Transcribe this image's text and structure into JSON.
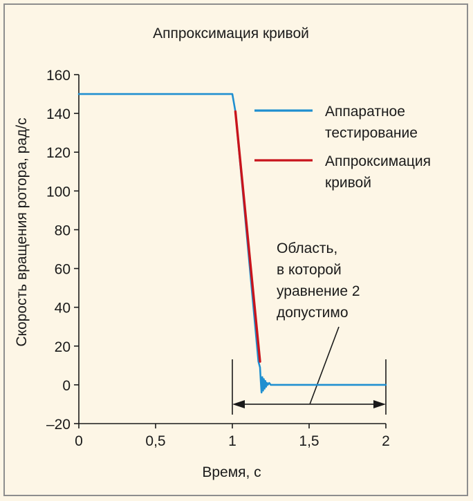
{
  "chart_data": {
    "type": "line",
    "title": "Аппроксимация кривой",
    "xlabel": "Время, с",
    "ylabel": "Скорость вращения ротора, рад/с",
    "xlim": [
      0,
      2
    ],
    "ylim": [
      -20,
      160
    ],
    "x_ticks": [
      "0",
      "0,5",
      "1",
      "1,5",
      "2"
    ],
    "x_tick_values": [
      0,
      0.5,
      1,
      1.5,
      2
    ],
    "y_ticks": [
      "160",
      "140",
      "120",
      "100",
      "80",
      "60",
      "40",
      "20",
      "0",
      "–20"
    ],
    "y_tick_values": [
      160,
      140,
      120,
      100,
      80,
      60,
      40,
      20,
      0,
      -20
    ],
    "grid": false,
    "legend_position": "top-right",
    "series": [
      {
        "name": "Аппаратное тестирование",
        "color": "#1f8fd0",
        "x": [
          0,
          1.0,
          1.02,
          1.17,
          1.18,
          1.185,
          1.19,
          1.195,
          1.2,
          1.205,
          1.21,
          1.215,
          1.22,
          1.225,
          1.23,
          1.24,
          1.25,
          1.3,
          2.0
        ],
        "y": [
          150,
          150,
          141,
          12,
          9,
          2,
          -4,
          4,
          -3,
          3,
          -2,
          2,
          -1,
          1,
          0,
          1,
          0,
          0,
          0
        ]
      },
      {
        "name": "Аппроксимация кривой",
        "color": "#c8141c",
        "x": [
          1.02,
          1.18
        ],
        "y": [
          141,
          12
        ]
      }
    ],
    "legend": [
      {
        "line1": "Аппаратное",
        "line2": "тестирование",
        "color": "#1f8fd0"
      },
      {
        "line1": "Аппроксимация",
        "line2": "кривой",
        "color": "#c8141c"
      }
    ],
    "annotation": {
      "lines": [
        "Область,",
        "в которой",
        "уравнение 2",
        "допустимо"
      ],
      "x_range": [
        1.0,
        2.0
      ],
      "arrow_y": -10
    }
  }
}
